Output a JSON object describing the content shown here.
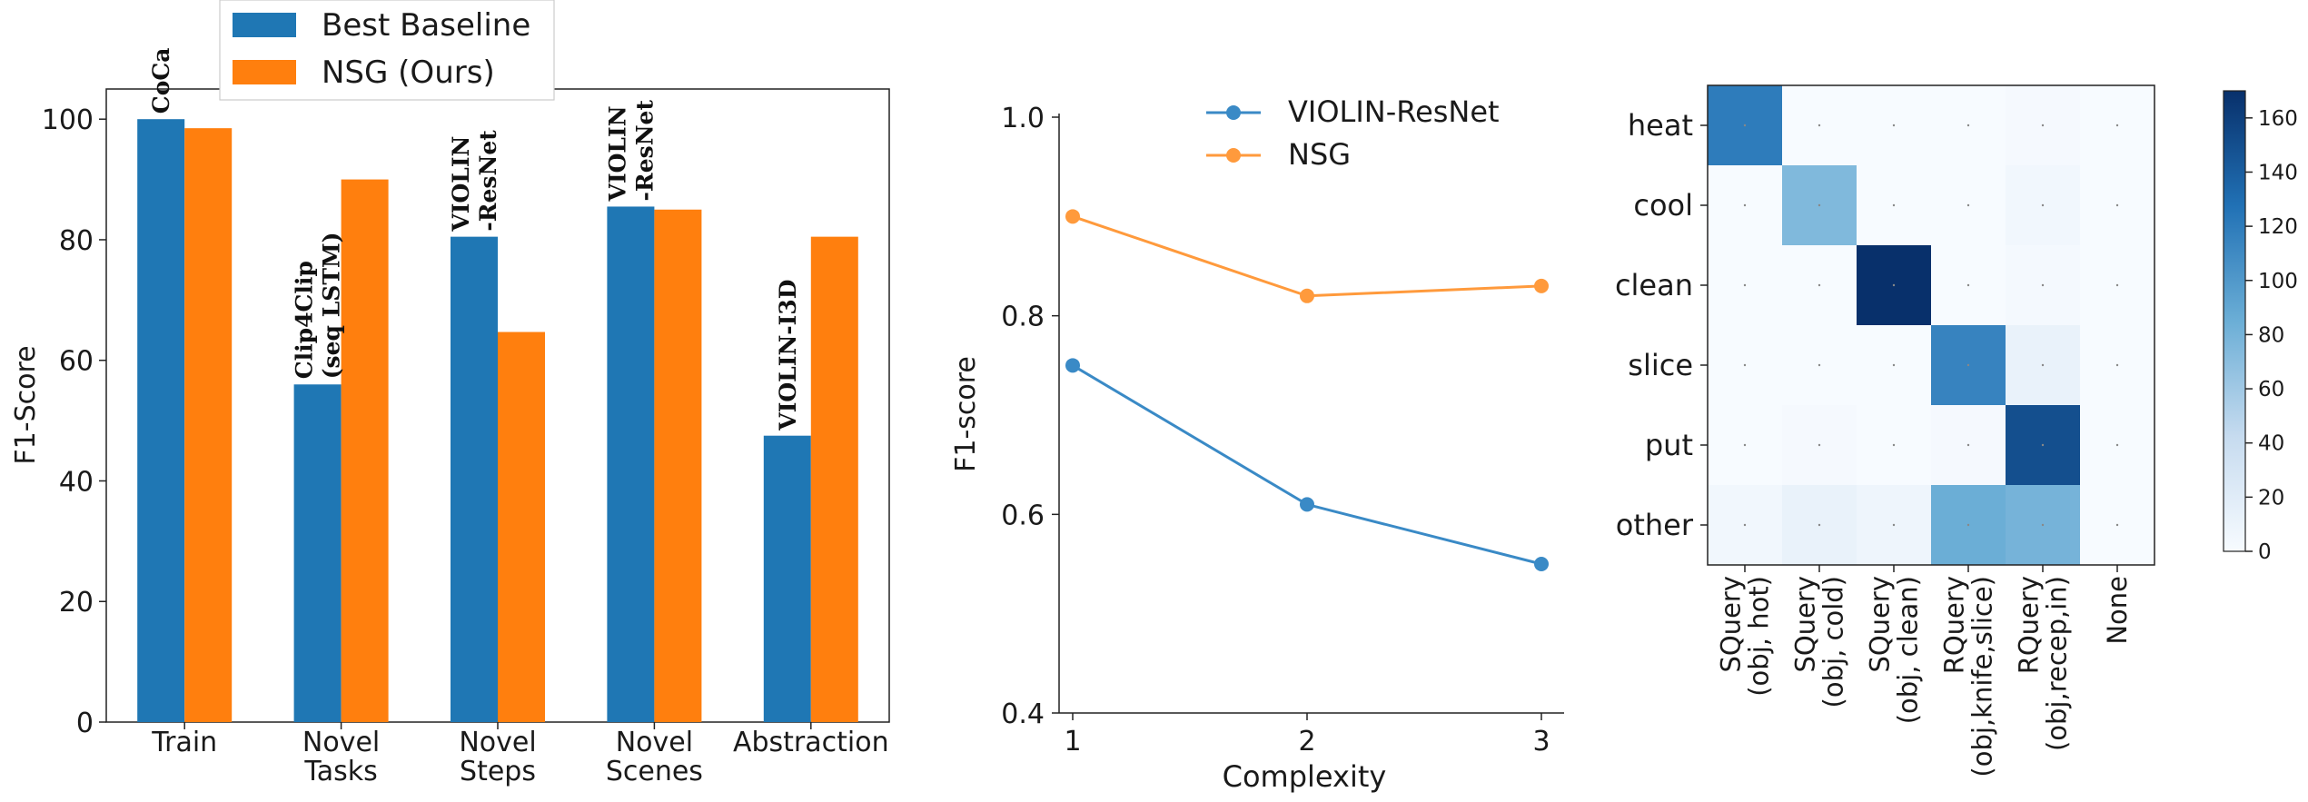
{
  "chart_data": [
    {
      "type": "bar",
      "ylabel": "F1-Score",
      "ylim": [
        0,
        105
      ],
      "yticks": [
        "0",
        "20",
        "40",
        "60",
        "80",
        "100"
      ],
      "categories": [
        "Train",
        "Novel\nTasks",
        "Novel\nSteps",
        "Novel\nScenes",
        "Abstraction"
      ],
      "series": [
        {
          "name": "Best Baseline",
          "color": "#1f77b4",
          "values": [
            100,
            56,
            80.5,
            85.5,
            47.5
          ]
        },
        {
          "name": "NSG (Ours)",
          "color": "#ff7f0e",
          "values": [
            98.5,
            90,
            64.7,
            85,
            80.5
          ]
        }
      ],
      "baseline_labels": [
        "CoCa",
        "Clip4Clip\n(seq LSTM)",
        "VIOLIN\n-ResNet",
        "VIOLIN\n-ResNet",
        "VIOLIN-I3D"
      ],
      "legend": "top-left"
    },
    {
      "type": "line",
      "xlabel": "Complexity",
      "ylabel": "F1-score",
      "x": [
        1,
        2,
        3
      ],
      "xticks": [
        "1",
        "2",
        "3"
      ],
      "ylim": [
        0.4,
        1.0
      ],
      "yticks": [
        "0.4",
        "0.6",
        "0.8",
        "1.0"
      ],
      "series": [
        {
          "name": "VIOLIN-ResNet",
          "color": "#3a8ac6",
          "values": [
            0.75,
            0.61,
            0.55
          ]
        },
        {
          "name": "NSG",
          "color": "#ff9a3c",
          "values": [
            0.9,
            0.82,
            0.83
          ]
        }
      ],
      "legend": "top-right"
    },
    {
      "type": "heatmap",
      "rows": [
        "heat",
        "cool",
        "clean",
        "slice",
        "put",
        "other"
      ],
      "columns": [
        "SQuery\n(obj, hot)",
        "SQuery\n(obj, cold)",
        "SQuery\n(obj, clean)",
        "RQuery\n(obj,knife,slice)",
        "RQuery\n(obj,recep,in)",
        "None"
      ],
      "values": [
        [
          120,
          0,
          0,
          0,
          2,
          0
        ],
        [
          0,
          75,
          0,
          0,
          5,
          0
        ],
        [
          0,
          0,
          170,
          0,
          3,
          0
        ],
        [
          0,
          0,
          0,
          115,
          12,
          0
        ],
        [
          0,
          2,
          0,
          2,
          150,
          0
        ],
        [
          5,
          12,
          8,
          85,
          80,
          0
        ]
      ],
      "colorbar": {
        "min": 0,
        "max": 170,
        "ticks": [
          "0",
          "20",
          "40",
          "60",
          "80",
          "100",
          "120",
          "140",
          "160"
        ],
        "colormap": "Blues"
      }
    }
  ]
}
